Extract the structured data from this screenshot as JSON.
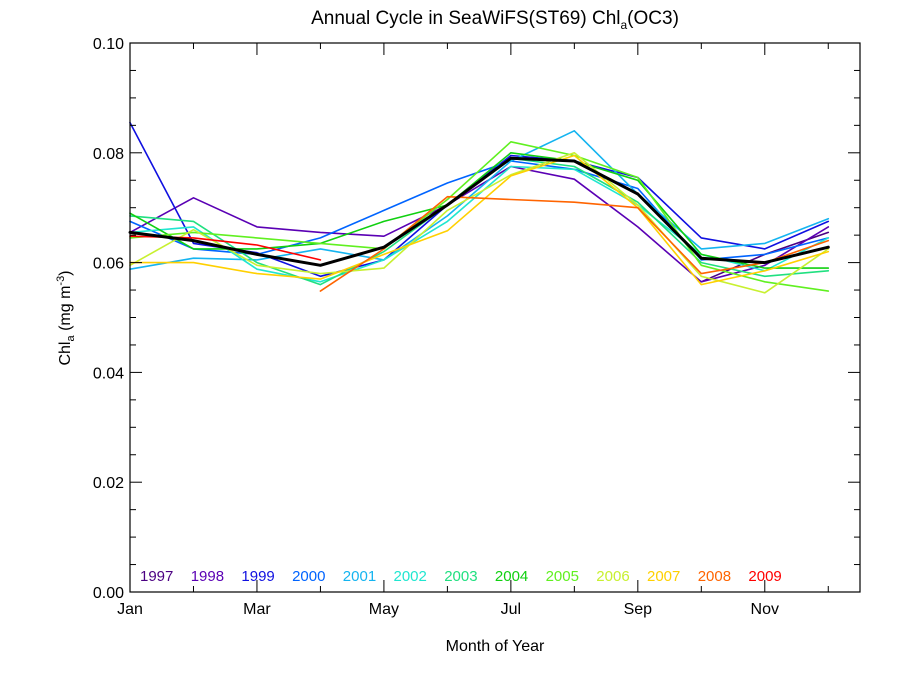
{
  "chart_data": {
    "type": "line",
    "title": {
      "text": "Annual Cycle in SeaWiFS(ST69) Chl",
      "subscript": "a",
      "suffix": "(OC3)"
    },
    "xlabel": "Month of Year",
    "ylabel": {
      "text": "Chl",
      "subscript": "a",
      "units": " (mg m",
      "superscript": "-3",
      "close": ")"
    },
    "x": [
      1,
      2,
      3,
      4,
      5,
      6,
      7,
      8,
      9,
      10,
      11,
      12
    ],
    "xlim": [
      1,
      12.5
    ],
    "ylim": [
      0,
      0.1
    ],
    "xticks": [
      {
        "value": 1,
        "label": "Jan"
      },
      {
        "value": 3,
        "label": "Mar"
      },
      {
        "value": 5,
        "label": "May"
      },
      {
        "value": 7,
        "label": "Jul"
      },
      {
        "value": 9,
        "label": "Sep"
      },
      {
        "value": 11,
        "label": "Nov"
      }
    ],
    "yticks": [
      {
        "value": 0.0,
        "label": "0.00"
      },
      {
        "value": 0.02,
        "label": "0.02"
      },
      {
        "value": 0.04,
        "label": "0.04"
      },
      {
        "value": 0.06,
        "label": "0.06"
      },
      {
        "value": 0.08,
        "label": "0.08"
      },
      {
        "value": 0.1,
        "label": "0.10"
      }
    ],
    "grid": false,
    "legend_position": "bottom",
    "series": [
      {
        "name": "1997",
        "color": "#4B0082",
        "values": [
          null,
          null,
          null,
          null,
          null,
          null,
          null,
          null,
          null,
          0.0565,
          0.0615,
          0.0655
        ]
      },
      {
        "name": "1998",
        "color": "#5A00B4",
        "values": [
          0.0655,
          0.0718,
          0.0665,
          0.0655,
          0.0648,
          0.0705,
          0.0775,
          0.0752,
          0.0665,
          0.0565,
          0.0595,
          0.0665
        ]
      },
      {
        "name": "1999",
        "color": "#1010E0",
        "values": [
          0.0855,
          0.0635,
          0.0618,
          0.0575,
          0.0605,
          0.0705,
          0.0795,
          0.0785,
          0.0755,
          0.0645,
          0.0625,
          0.0675
        ]
      },
      {
        "name": "2000",
        "color": "#0064FF",
        "values": [
          0.0675,
          0.0625,
          0.0615,
          0.0645,
          0.0695,
          0.0745,
          0.0785,
          0.077,
          0.0735,
          0.0605,
          0.0615,
          0.0645
        ]
      },
      {
        "name": "2001",
        "color": "#14B4F0",
        "values": [
          0.0588,
          0.0608,
          0.0605,
          0.0625,
          0.0605,
          0.0685,
          0.0785,
          0.084,
          0.0725,
          0.0625,
          0.0635,
          0.068
        ]
      },
      {
        "name": "2002",
        "color": "#20E6D0",
        "values": [
          0.0655,
          0.0665,
          0.0588,
          0.0565,
          0.0605,
          0.0675,
          0.0775,
          0.077,
          0.0705,
          0.0615,
          0.0585,
          0.0645
        ]
      },
      {
        "name": "2003",
        "color": "#20E080",
        "values": [
          0.0685,
          0.0675,
          0.06,
          0.056,
          0.062,
          0.0705,
          0.079,
          0.0775,
          0.071,
          0.06,
          0.0575,
          0.0585
        ]
      },
      {
        "name": "2004",
        "color": "#10D010",
        "values": [
          0.069,
          0.0625,
          0.0625,
          0.0635,
          0.0675,
          0.0705,
          0.08,
          0.0785,
          0.075,
          0.0615,
          0.059,
          0.059
        ]
      },
      {
        "name": "2005",
        "color": "#60F020",
        "values": [
          0.0645,
          0.0655,
          0.0645,
          0.0635,
          0.0625,
          0.0715,
          0.082,
          0.0795,
          0.0755,
          0.0595,
          0.0565,
          0.0548
        ]
      },
      {
        "name": "2006",
        "color": "#C8F030",
        "values": [
          0.0595,
          0.066,
          0.0595,
          0.058,
          0.059,
          0.0695,
          0.076,
          0.08,
          0.0705,
          0.0575,
          0.0545,
          0.0625
        ]
      },
      {
        "name": "2007",
        "color": "#FFD000",
        "values": [
          0.06,
          0.06,
          0.058,
          0.057,
          0.0615,
          0.0658,
          0.0758,
          0.0795,
          0.07,
          0.056,
          0.0585,
          0.062
        ]
      },
      {
        "name": "2008",
        "color": "#FF6400",
        "values": [
          null,
          null,
          null,
          0.0548,
          0.0625,
          0.072,
          0.0715,
          0.071,
          0.07,
          0.058,
          0.06,
          0.064
        ]
      },
      {
        "name": "2009",
        "color": "#FF0000",
        "values": [
          0.0648,
          0.0645,
          0.0632,
          0.0605,
          null,
          null,
          null,
          null,
          null,
          null,
          null,
          null
        ]
      }
    ],
    "mean": {
      "color": "#000000",
      "values": [
        0.0655,
        0.064,
        0.0615,
        0.0595,
        0.0628,
        0.0705,
        0.079,
        0.0785,
        0.0725,
        0.0608,
        0.06,
        0.0628
      ]
    }
  }
}
